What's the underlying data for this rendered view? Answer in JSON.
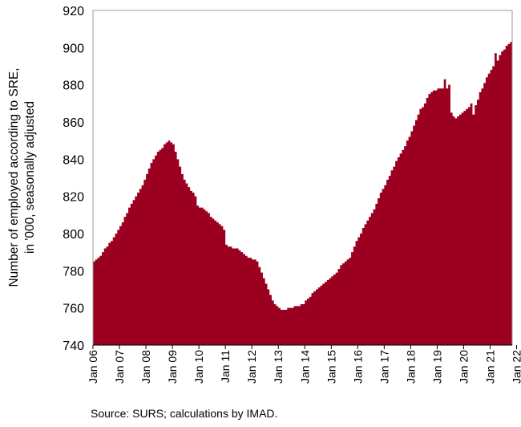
{
  "chart_data": {
    "type": "area",
    "ylabel_lines": [
      "Number of employed according to SRE,",
      "in '000, seasonally adjusted"
    ],
    "ylim": [
      740,
      920
    ],
    "yticks": [
      740,
      760,
      780,
      800,
      820,
      840,
      860,
      880,
      900,
      920
    ],
    "xtick_labels": [
      "Jan 06",
      "Jan 07",
      "Jan 08",
      "Jan 09",
      "Jan 10",
      "Jan 11",
      "Jan 12",
      "Jan 13",
      "Jan 14",
      "Jan 15",
      "Jan 16",
      "Jan 17",
      "Jan 18",
      "Jan 19",
      "Jan 20",
      "Jan 21",
      "Jan 22"
    ],
    "x_start": "2006-01",
    "frequency": "monthly",
    "grid": false,
    "legend": "none",
    "fill_color": "#9b0020",
    "series": [
      {
        "values": [
          785,
          786,
          787,
          788,
          790,
          792,
          793,
          795,
          796,
          798,
          800,
          802,
          804,
          806,
          809,
          811,
          814,
          816,
          818,
          820,
          822,
          824,
          826,
          829,
          832,
          835,
          838,
          840,
          842,
          844,
          845,
          846,
          848,
          849,
          850,
          849,
          848,
          844,
          840,
          836,
          832,
          829,
          827,
          825,
          823,
          822,
          820,
          815,
          814,
          814,
          813,
          812,
          811,
          809,
          808,
          807,
          806,
          805,
          804,
          802,
          794,
          793,
          793,
          792,
          792,
          792,
          791,
          790,
          789,
          788,
          787,
          787,
          786,
          786,
          785,
          782,
          779,
          776,
          773,
          770,
          767,
          764,
          762,
          761,
          760,
          759,
          759,
          759,
          760,
          760,
          760,
          761,
          761,
          761,
          762,
          762,
          764,
          765,
          766,
          768,
          769,
          770,
          771,
          772,
          773,
          774,
          775,
          776,
          777,
          778,
          779,
          781,
          783,
          784,
          785,
          786,
          787,
          790,
          793,
          796,
          798,
          800,
          803,
          805,
          807,
          809,
          811,
          813,
          816,
          819,
          822,
          824,
          826,
          829,
          831,
          834,
          836,
          839,
          841,
          843,
          845,
          847,
          850,
          852,
          855,
          858,
          861,
          864,
          867,
          868,
          870,
          873,
          875,
          876,
          877,
          877,
          878,
          878,
          878,
          883,
          878,
          880,
          865,
          863,
          862,
          863,
          864,
          865,
          866,
          867,
          868,
          870,
          864,
          869,
          872,
          876,
          878,
          881,
          884,
          886,
          888,
          890,
          897,
          893,
          896,
          898,
          899,
          901,
          902,
          903
        ]
      }
    ]
  },
  "source_note": "Source: SURS; calculations by IMAD."
}
